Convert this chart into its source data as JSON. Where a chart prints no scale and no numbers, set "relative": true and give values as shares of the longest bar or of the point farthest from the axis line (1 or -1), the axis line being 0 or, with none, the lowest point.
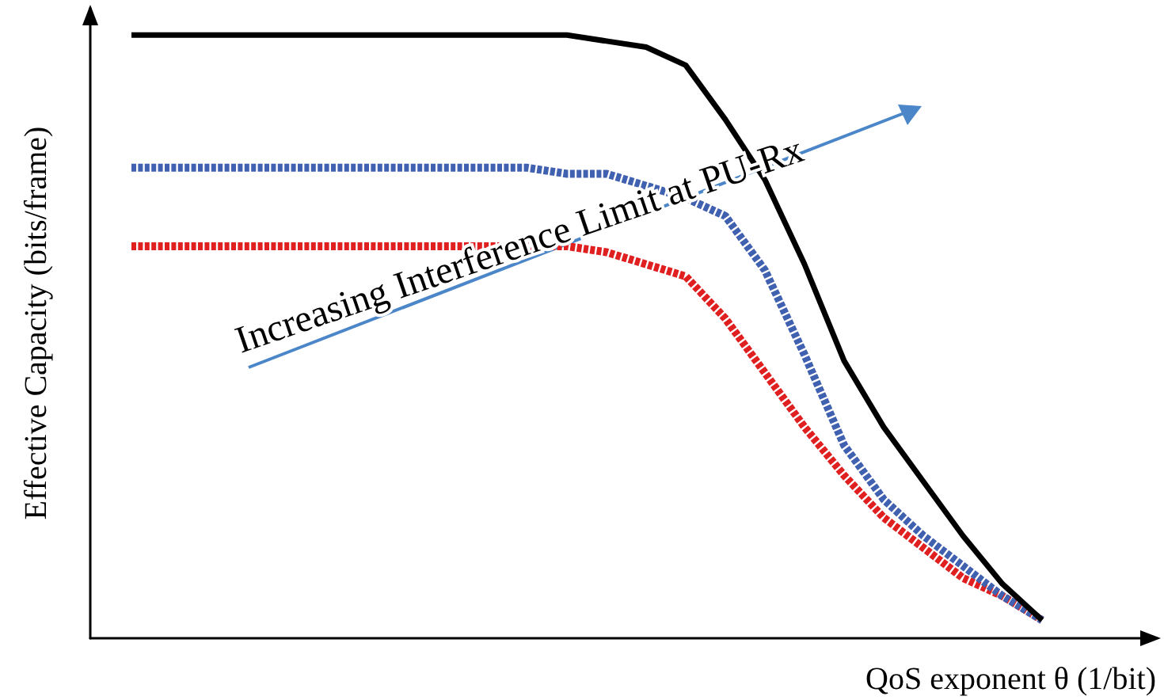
{
  "chart_data": {
    "type": "line",
    "relative": true,
    "xlabel": "QoS exponent θ (1/bit)",
    "ylabel": "Effective Capacity (bits/frame)",
    "categories": [
      null,
      null,
      null,
      null,
      null,
      null,
      null,
      null,
      null,
      null,
      null,
      null,
      null,
      null,
      null,
      null,
      null,
      null,
      null,
      null,
      null,
      null,
      null,
      null
    ],
    "series": [
      {
        "color": "#000000",
        "line_style": "solid",
        "values": [
          1,
          1,
          1,
          1,
          1,
          1,
          1,
          1,
          1,
          1,
          1,
          1,
          0.99,
          0.98,
          0.95,
          0.86,
          0.76,
          0.62,
          0.46,
          0.35,
          0.26,
          0.17,
          0.09,
          0.03
        ]
      },
      {
        "color": "#4060b0",
        "line_style": "dotted",
        "values": [
          0.78,
          0.78,
          0.78,
          0.78,
          0.78,
          0.78,
          0.78,
          0.78,
          0.78,
          0.78,
          0.78,
          0.77,
          0.77,
          0.75,
          0.73,
          0.7,
          0.61,
          0.47,
          0.32,
          0.23,
          0.17,
          0.12,
          0.07,
          0.03
        ]
      },
      {
        "color": "#e02020",
        "line_style": "dotted",
        "values": [
          0.65,
          0.65,
          0.65,
          0.65,
          0.65,
          0.65,
          0.65,
          0.65,
          0.65,
          0.65,
          0.65,
          0.65,
          0.64,
          0.62,
          0.6,
          0.53,
          0.44,
          0.35,
          0.27,
          0.2,
          0.15,
          0.1,
          0.07,
          0.03
        ]
      }
    ],
    "annotations": [
      "Increasing Interference Limit at PU-Rx"
    ],
    "marker": "none"
  }
}
